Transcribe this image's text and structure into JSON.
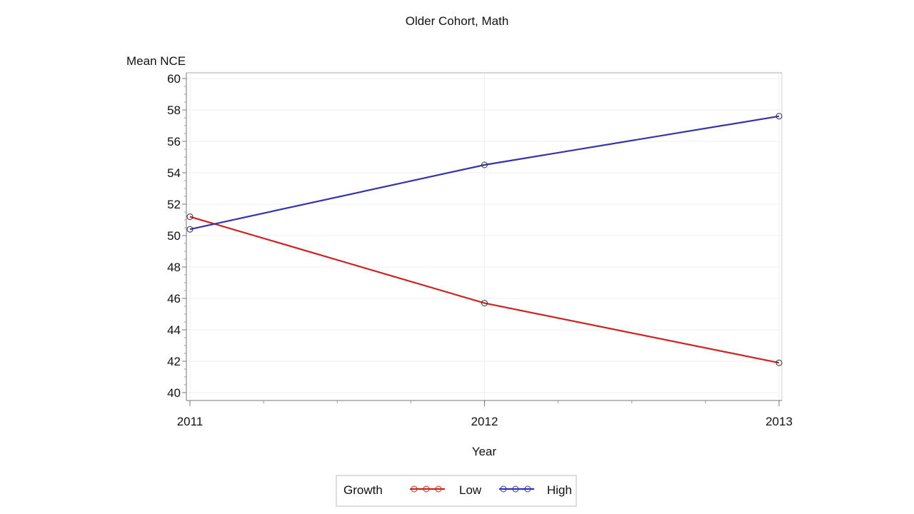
{
  "chart_data": {
    "type": "line",
    "title": "Older Cohort, Math",
    "xlabel": "Year",
    "ylabel": "Mean NCE",
    "x": [
      "2011",
      "2012",
      "2013"
    ],
    "xlim": [
      2011,
      2013
    ],
    "ylim": [
      40,
      60
    ],
    "yticks": [
      "40",
      "42",
      "44",
      "46",
      "48",
      "50",
      "52",
      "54",
      "56",
      "58",
      "60"
    ],
    "grid": true,
    "legend": {
      "title": "Growth",
      "placement": "bottom-center"
    },
    "series": [
      {
        "name": "Low",
        "color": "#cc2222",
        "values": [
          51.2,
          45.7,
          41.9
        ]
      },
      {
        "name": "High",
        "color": "#3333aa",
        "values": [
          50.4,
          54.5,
          57.6
        ]
      }
    ]
  }
}
